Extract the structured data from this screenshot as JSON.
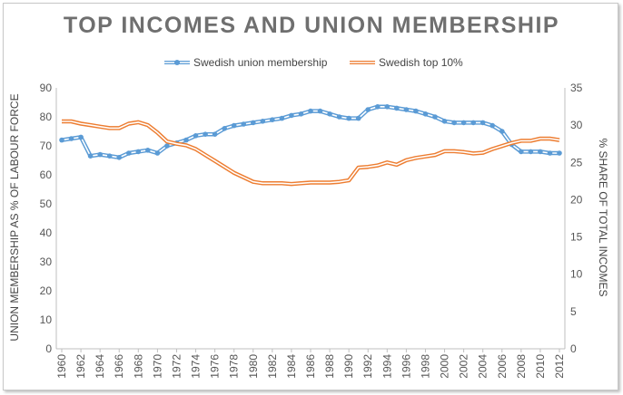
{
  "chart_data": {
    "type": "line",
    "title": "TOP INCOMES AND UNION MEMBERSHIP",
    "xlabel": "",
    "ylabel_left": "UNION MEMBERSHIP AS % OF LABOUR FORCE",
    "ylabel_right": "% SHARE OF TOTAL INCOMES",
    "ylim_left": [
      0,
      90
    ],
    "ylim_right": [
      0,
      35
    ],
    "yticks_left": [
      "0",
      "10",
      "20",
      "30",
      "40",
      "50",
      "60",
      "70",
      "80",
      "90"
    ],
    "yticks_right": [
      "0",
      "5",
      "10",
      "15",
      "20",
      "25",
      "30",
      "35"
    ],
    "xticks": [
      "1960",
      "1962",
      "1964",
      "1966",
      "1968",
      "1970",
      "1972",
      "1974",
      "1976",
      "1978",
      "1980",
      "1982",
      "1984",
      "1986",
      "1988",
      "1990",
      "1992",
      "1994",
      "1996",
      "1998",
      "2000",
      "2002",
      "2004",
      "2006",
      "2008",
      "2010",
      "2012"
    ],
    "x": [
      1960,
      1961,
      1962,
      1963,
      1964,
      1965,
      1966,
      1967,
      1968,
      1969,
      1970,
      1971,
      1972,
      1973,
      1974,
      1975,
      1976,
      1977,
      1978,
      1979,
      1980,
      1981,
      1982,
      1983,
      1984,
      1985,
      1986,
      1987,
      1988,
      1989,
      1990,
      1991,
      1992,
      1993,
      1994,
      1995,
      1996,
      1997,
      1998,
      1999,
      2000,
      2001,
      2002,
      2003,
      2004,
      2005,
      2006,
      2007,
      2008,
      2009,
      2010,
      2011,
      2012
    ],
    "legend_position": "top-center",
    "series": [
      {
        "name": "Swedish union membership",
        "axis": "left",
        "color": "#5b9bd5",
        "marker": "circle",
        "values": [
          72,
          72.5,
          73,
          66.5,
          67,
          66.5,
          66,
          67.5,
          68,
          68.5,
          67.5,
          70,
          71,
          72,
          73.5,
          74,
          74,
          76,
          77,
          77.5,
          78,
          78.5,
          79,
          79.5,
          80.5,
          81,
          82,
          82,
          81,
          80,
          79.5,
          79.5,
          82.5,
          83.5,
          83.5,
          83,
          82.5,
          82,
          81,
          80,
          78.5,
          78,
          78,
          78,
          78,
          77,
          75,
          70.5,
          68,
          68,
          68,
          67.5,
          67.5
        ]
      },
      {
        "name": "Swedish top 10%",
        "axis": "right",
        "color": "#ed7d31",
        "marker": "none",
        "values": [
          30.5,
          30.5,
          30.2,
          30,
          29.8,
          29.6,
          29.6,
          30.2,
          30.4,
          30,
          29,
          27.8,
          27.5,
          27.3,
          26.8,
          26,
          25.2,
          24.4,
          23.6,
          23,
          22.4,
          22.2,
          22.2,
          22.2,
          22.1,
          22.2,
          22.3,
          22.3,
          22.3,
          22.4,
          22.6,
          24.3,
          24.4,
          24.6,
          25,
          24.7,
          25.3,
          25.6,
          25.8,
          26,
          26.5,
          26.5,
          26.4,
          26.2,
          26.3,
          26.8,
          27.2,
          27.6,
          27.9,
          27.9,
          28.2,
          28.2,
          28
        ]
      }
    ]
  }
}
